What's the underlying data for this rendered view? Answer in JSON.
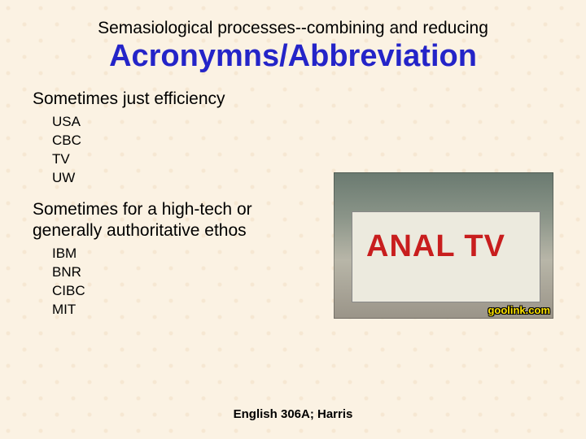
{
  "pretitle": "Semasiological processes--combining and reducing",
  "title": "Acronymns/Abbreviation",
  "section1": {
    "heading": "Sometimes just efficiency",
    "items": [
      "USA",
      "CBC",
      "TV",
      "UW"
    ]
  },
  "section2": {
    "heading": "Sometimes for a high-tech or generally authoritative ethos",
    "items": [
      "IBM",
      "BNR",
      "CIBC",
      "MIT"
    ]
  },
  "image": {
    "van_text": "ANAL TV",
    "watermark": "goolink.com"
  },
  "footer": "English 306A; Harris",
  "colors": {
    "background": "#fbf2e3",
    "title": "#2424c8",
    "van_text": "#c81e1e",
    "watermark": "#ffe400"
  },
  "typography": {
    "pretitle_fontsize": 21,
    "title_fontsize": 38,
    "subhead_fontsize": 21,
    "example_fontsize": 17,
    "footer_fontsize": 15
  }
}
